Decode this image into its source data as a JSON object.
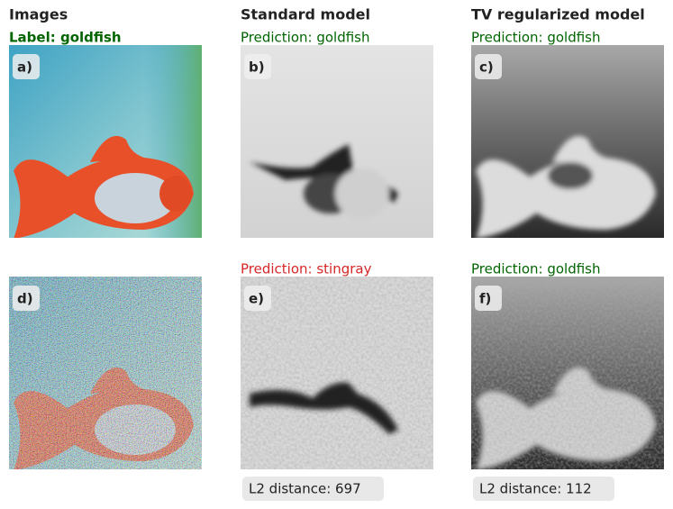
{
  "columns": [
    {
      "title": "Images"
    },
    {
      "title": "Standard model"
    },
    {
      "title": "TV regularized model"
    }
  ],
  "panels": [
    {
      "letter": "a)",
      "caption": "Label: goldfish"
    },
    {
      "letter": "b)",
      "caption": "Prediction: goldfish"
    },
    {
      "letter": "c)",
      "caption": "Prediction: goldfish"
    },
    {
      "letter": "d)"
    },
    {
      "letter": "e)",
      "caption": "Prediction: stingray",
      "footer": "L2 distance: 697"
    },
    {
      "letter": "f)",
      "caption": "Prediction: goldfish",
      "footer": "L2 distance: 112"
    }
  ]
}
